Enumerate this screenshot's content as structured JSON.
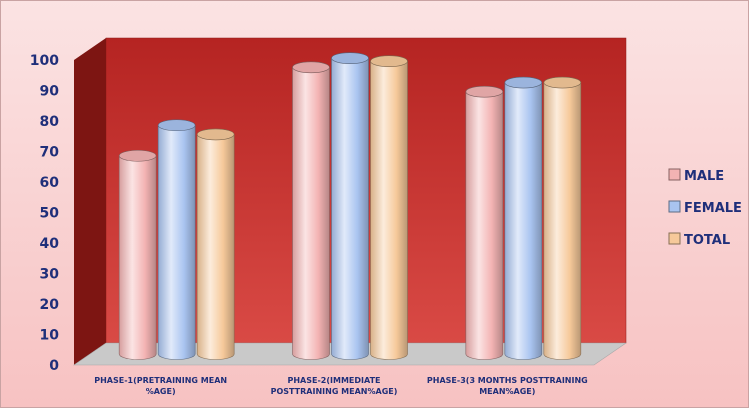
{
  "chart_data": {
    "type": "bar",
    "title": "",
    "xlabel": "",
    "ylabel": "",
    "ylim": [
      0,
      100
    ],
    "yticks": [
      0,
      10,
      20,
      30,
      40,
      50,
      60,
      70,
      80,
      90,
      100
    ],
    "categories": [
      [
        "PHASE-1(PRETRAINING MEAN",
        "%AGE)"
      ],
      [
        "PHASE-2(IMMEDIATE",
        "POSTTRAINING MEAN%AGE)"
      ],
      [
        "PHASE-3(3 MONTHS POSTTRAINING",
        "MEAN%AGE)"
      ]
    ],
    "series": [
      {
        "name": "MALE",
        "values": [
          65,
          94,
          86
        ],
        "color": "#f3b3b3"
      },
      {
        "name": "FEMALE",
        "values": [
          75,
          97,
          89
        ],
        "color": "#a9c4f0"
      },
      {
        "name": "TOTAL",
        "values": [
          72,
          96,
          89
        ],
        "color": "#f6c99a"
      }
    ],
    "legend_position": "right",
    "background_wall_color": "#c8322f",
    "floor_color": "#c9c9c9"
  }
}
